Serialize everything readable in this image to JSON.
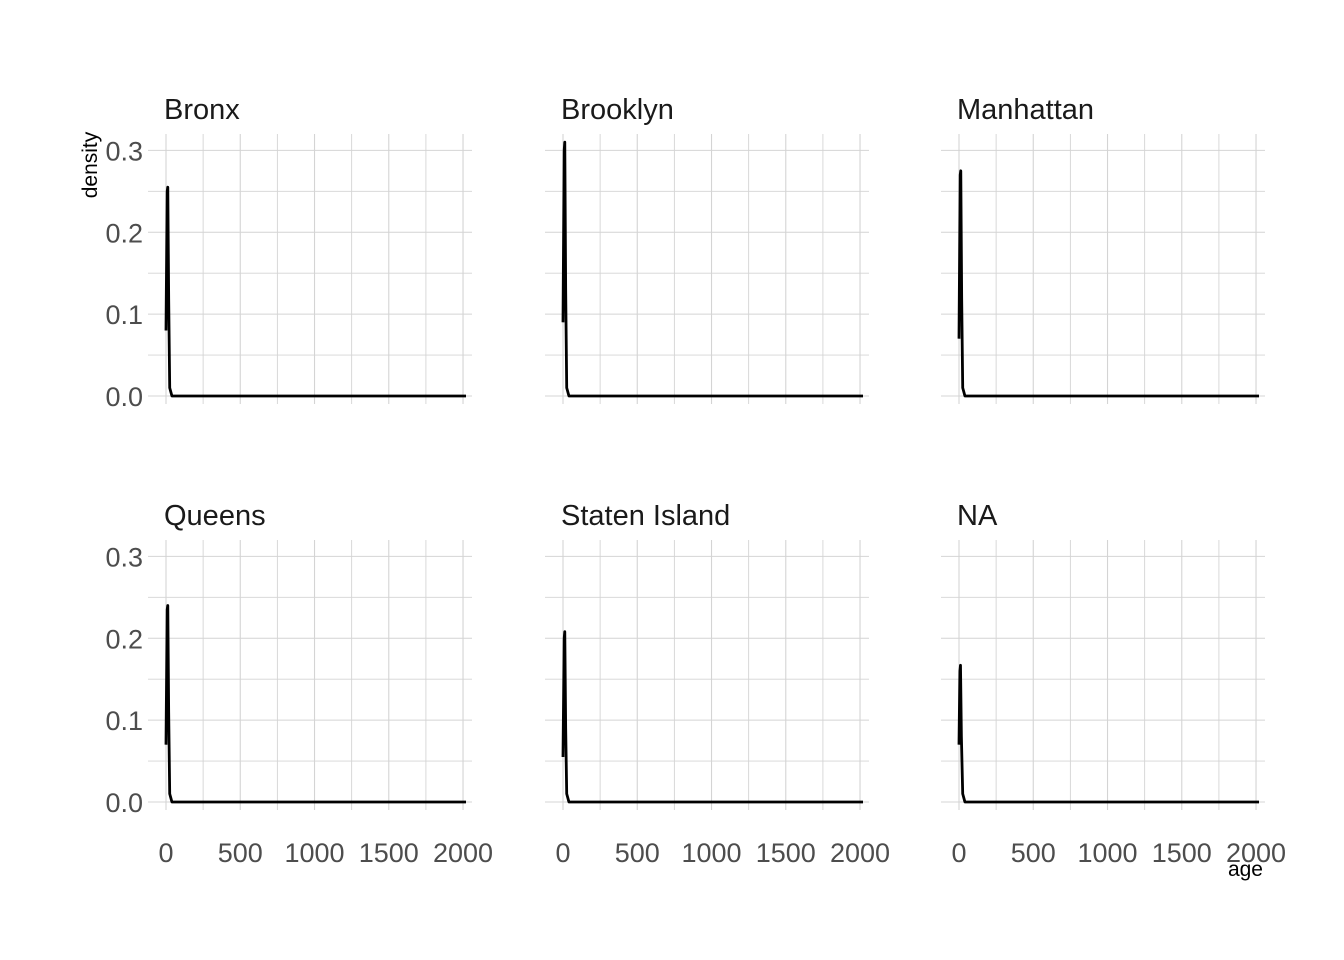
{
  "chart_data": {
    "type": "line",
    "facet_by": "borough",
    "xlabel": "age",
    "ylabel": "density",
    "xlim": [
      0,
      2020
    ],
    "ylim": [
      0,
      0.32
    ],
    "x_ticks": [
      0,
      500,
      1000,
      1500,
      2000
    ],
    "x_tick_labels": [
      "0",
      "500",
      "1000",
      "1500",
      "2000"
    ],
    "y_ticks": [
      0.0,
      0.1,
      0.2,
      0.3
    ],
    "y_tick_labels": [
      "0.0",
      "0.1",
      "0.2",
      "0.3"
    ],
    "grid": true,
    "line_color": "#000000",
    "panels": [
      {
        "title": "Bronx",
        "x": [
          0,
          8,
          12,
          18,
          25,
          40,
          2020
        ],
        "y": [
          0.08,
          0.25,
          0.255,
          0.12,
          0.01,
          0.0,
          0.0
        ]
      },
      {
        "title": "Brooklyn",
        "x": [
          0,
          8,
          12,
          18,
          25,
          40,
          2020
        ],
        "y": [
          0.09,
          0.3,
          0.31,
          0.13,
          0.01,
          0.0,
          0.0
        ]
      },
      {
        "title": "Manhattan",
        "x": [
          0,
          8,
          12,
          18,
          25,
          40,
          2020
        ],
        "y": [
          0.07,
          0.27,
          0.275,
          0.12,
          0.01,
          0.0,
          0.0
        ]
      },
      {
        "title": "Queens",
        "x": [
          0,
          8,
          12,
          18,
          25,
          40,
          2020
        ],
        "y": [
          0.07,
          0.235,
          0.24,
          0.11,
          0.01,
          0.0,
          0.0
        ]
      },
      {
        "title": "Staten Island",
        "x": [
          0,
          8,
          12,
          18,
          25,
          40,
          2020
        ],
        "y": [
          0.055,
          0.2,
          0.208,
          0.09,
          0.01,
          0.0,
          0.0
        ]
      },
      {
        "title": "NA",
        "x": [
          0,
          6,
          10,
          16,
          25,
          40,
          2020
        ],
        "y": [
          0.07,
          0.16,
          0.167,
          0.08,
          0.01,
          0.0,
          0.0
        ]
      }
    ]
  }
}
